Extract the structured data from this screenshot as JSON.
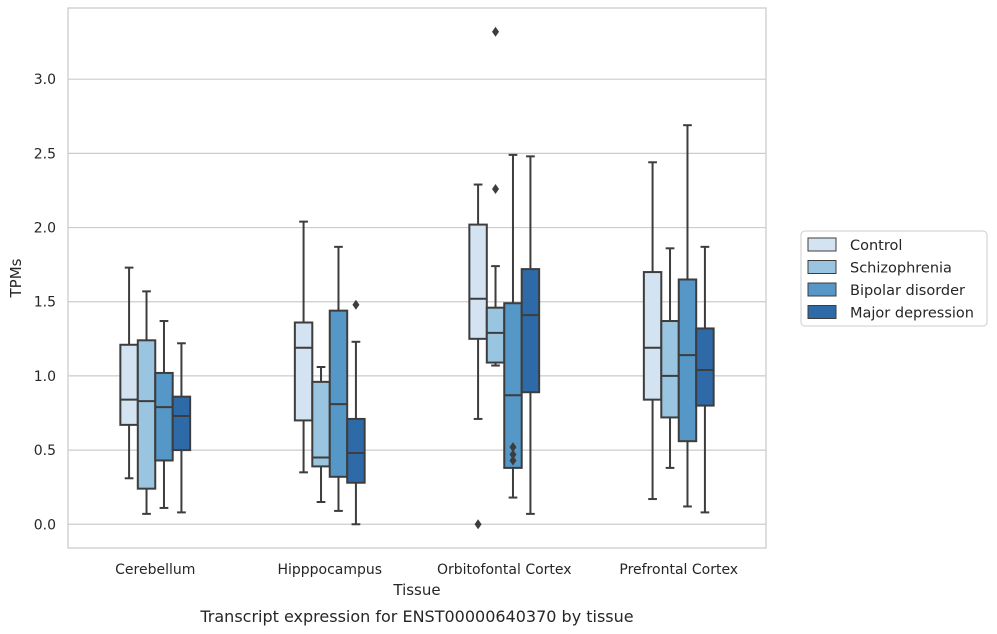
{
  "chart_data": {
    "type": "boxplot",
    "xlabel": "Tissue",
    "ylabel": "TPMs",
    "caption": "Transcript expression for ENST00000640370 by tissue",
    "categories": [
      "Cerebellum",
      "Hipppocampus",
      "Orbitofontal Cortex",
      "Prefrontal Cortex"
    ],
    "ylim": [
      -0.16,
      3.48
    ],
    "yticks": [
      0.0,
      0.5,
      1.0,
      1.5,
      2.0,
      2.5,
      3.0
    ],
    "ytick_labels": [
      "0.0",
      "0.5",
      "1.0",
      "1.5",
      "2.0",
      "2.5",
      "3.0"
    ],
    "grid": true,
    "legend_position": "right, outside plot",
    "series": [
      {
        "name": "Control",
        "color": "#d4e3f2",
        "boxes": [
          {
            "whisker_low": 0.31,
            "q1": 0.67,
            "median": 0.84,
            "q3": 1.21,
            "whisker_high": 1.73,
            "outliers": []
          },
          {
            "whisker_low": 0.35,
            "q1": 0.7,
            "median": 1.19,
            "q3": 1.36,
            "whisker_high": 2.04,
            "outliers": []
          },
          {
            "whisker_low": 0.71,
            "q1": 1.25,
            "median": 1.52,
            "q3": 2.02,
            "whisker_high": 2.29,
            "outliers": [
              0.0
            ]
          },
          {
            "whisker_low": 0.17,
            "q1": 0.84,
            "median": 1.19,
            "q3": 1.7,
            "whisker_high": 2.44,
            "outliers": []
          }
        ]
      },
      {
        "name": "Schizophrenia",
        "color": "#9ac5e0",
        "boxes": [
          {
            "whisker_low": 0.07,
            "q1": 0.24,
            "median": 0.83,
            "q3": 1.24,
            "whisker_high": 1.57,
            "outliers": []
          },
          {
            "whisker_low": 0.15,
            "q1": 0.39,
            "median": 0.45,
            "q3": 0.96,
            "whisker_high": 1.06,
            "outliers": []
          },
          {
            "whisker_low": 1.07,
            "q1": 1.09,
            "median": 1.29,
            "q3": 1.46,
            "whisker_high": 1.74,
            "outliers": [
              2.26,
              3.32
            ]
          },
          {
            "whisker_low": 0.38,
            "q1": 0.72,
            "median": 1.0,
            "q3": 1.37,
            "whisker_high": 1.86,
            "outliers": []
          }
        ]
      },
      {
        "name": "Bipolar disorder",
        "color": "#5597c6",
        "boxes": [
          {
            "whisker_low": 0.11,
            "q1": 0.43,
            "median": 0.79,
            "q3": 1.02,
            "whisker_high": 1.37,
            "outliers": []
          },
          {
            "whisker_low": 0.09,
            "q1": 0.32,
            "median": 0.81,
            "q3": 1.44,
            "whisker_high": 1.87,
            "outliers": []
          },
          {
            "whisker_low": 0.18,
            "q1": 0.38,
            "median": 0.87,
            "q3": 1.49,
            "whisker_high": 2.49,
            "outliers": [
              0.43,
              0.47,
              0.52
            ]
          },
          {
            "whisker_low": 0.12,
            "q1": 0.56,
            "median": 1.14,
            "q3": 1.65,
            "whisker_high": 2.69,
            "outliers": []
          }
        ]
      },
      {
        "name": "Major depression",
        "color": "#2d6aa7",
        "boxes": [
          {
            "whisker_low": 0.08,
            "q1": 0.5,
            "median": 0.73,
            "q3": 0.86,
            "whisker_high": 1.22,
            "outliers": []
          },
          {
            "whisker_low": 0.0,
            "q1": 0.28,
            "median": 0.48,
            "q3": 0.71,
            "whisker_high": 1.23,
            "outliers": [
              1.48
            ]
          },
          {
            "whisker_low": 0.07,
            "q1": 0.89,
            "median": 1.41,
            "q3": 1.72,
            "whisker_high": 2.48,
            "outliers": []
          },
          {
            "whisker_low": 0.08,
            "q1": 0.8,
            "median": 1.04,
            "q3": 1.32,
            "whisker_high": 1.87,
            "outliers": []
          }
        ]
      }
    ]
  }
}
